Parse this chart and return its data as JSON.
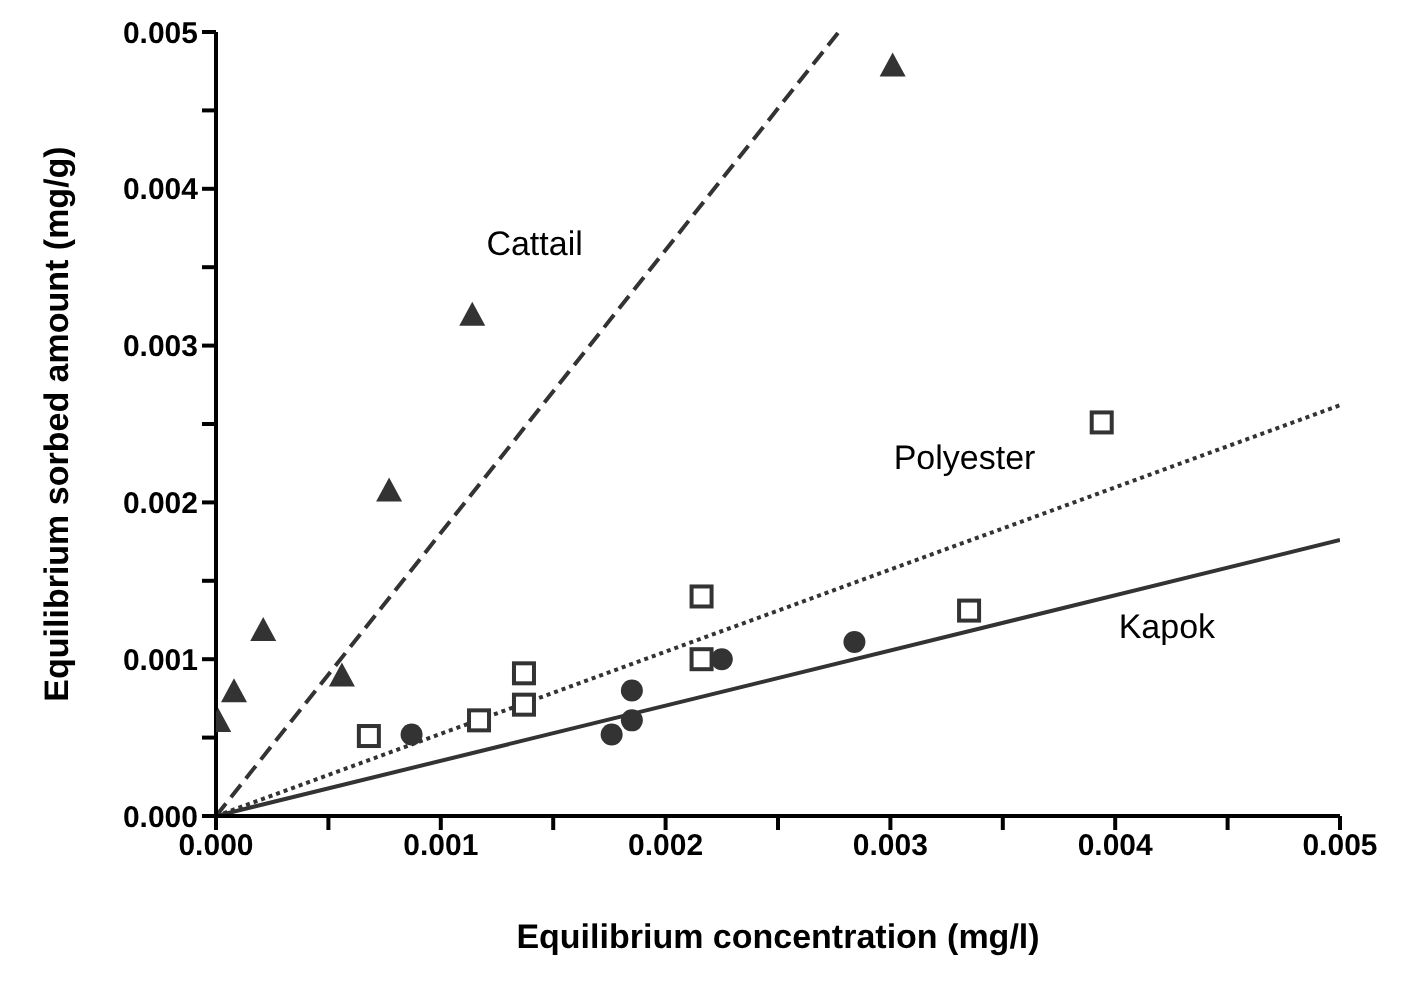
{
  "chart_data": {
    "type": "scatter",
    "xlabel": "Equilibrium concentration (mg/l)",
    "ylabel": "Equilibrium sorbed amount (mg/g)",
    "xlim": [
      0,
      0.005
    ],
    "ylim": [
      0,
      0.005
    ],
    "xticks": [
      {
        "value": 0,
        "label": "0.000"
      },
      {
        "value": 0.0005,
        "label": null
      },
      {
        "value": 0.001,
        "label": "0.001"
      },
      {
        "value": 0.0015,
        "label": null
      },
      {
        "value": 0.002,
        "label": "0.002"
      },
      {
        "value": 0.0025,
        "label": null
      },
      {
        "value": 0.003,
        "label": "0.003"
      },
      {
        "value": 0.0035,
        "label": null
      },
      {
        "value": 0.004,
        "label": "0.004"
      },
      {
        "value": 0.0045,
        "label": null
      },
      {
        "value": 0.005,
        "label": "0.005"
      }
    ],
    "yticks": [
      {
        "value": 0,
        "label": "0.000"
      },
      {
        "value": 0.0005,
        "label": null
      },
      {
        "value": 0.001,
        "label": "0.001"
      },
      {
        "value": 0.0015,
        "label": null
      },
      {
        "value": 0.002,
        "label": "0.002"
      },
      {
        "value": 0.0025,
        "label": null
      },
      {
        "value": 0.003,
        "label": "0.003"
      },
      {
        "value": 0.0035,
        "label": null
      },
      {
        "value": 0.004,
        "label": "0.004"
      },
      {
        "value": 0.0045,
        "label": null
      },
      {
        "value": 0.005,
        "label": "0.005"
      }
    ],
    "grid": false,
    "legend": false,
    "series": [
      {
        "marker": "triangle",
        "color": "#333333",
        "x": [
          1e-05,
          8e-05,
          0.00021,
          0.00056,
          0.00077,
          0.00114,
          0.00301
        ],
        "values": [
          0.0006,
          0.00079,
          0.00118,
          0.00089,
          0.00207,
          0.00319,
          0.00478
        ]
      },
      {
        "marker": "square",
        "color": "#333333",
        "x": [
          0.00068,
          0.00117,
          0.00137,
          0.00137,
          0.00216,
          0.00216,
          0.00335,
          0.00394
        ],
        "values": [
          0.00051,
          0.00061,
          0.00071,
          0.00091,
          0.001,
          0.0014,
          0.00131,
          0.00251
        ]
      },
      {
        "marker": "circle",
        "color": "#333333",
        "x": [
          0.00087,
          0.00176,
          0.00185,
          0.00185,
          0.00225,
          0.00284
        ],
        "values": [
          0.00052,
          0.00052,
          0.00061,
          0.0008,
          0.001,
          0.00111
        ]
      },
      {
        "type": "line",
        "name": "Cattail",
        "line_style": "dashed",
        "color": "#333333",
        "x": [
          0,
          0.00277
        ],
        "values": [
          0,
          0.005
        ]
      },
      {
        "type": "line",
        "name": "Polyester",
        "line_style": "dotted",
        "color": "#333333",
        "x": [
          0,
          0.005
        ],
        "values": [
          0,
          0.00262
        ]
      },
      {
        "type": "line",
        "name": "Kapok",
        "line_style": "solid",
        "color": "#333333",
        "x": [
          0,
          0.005
        ],
        "values": [
          0,
          0.00176
        ]
      }
    ]
  }
}
